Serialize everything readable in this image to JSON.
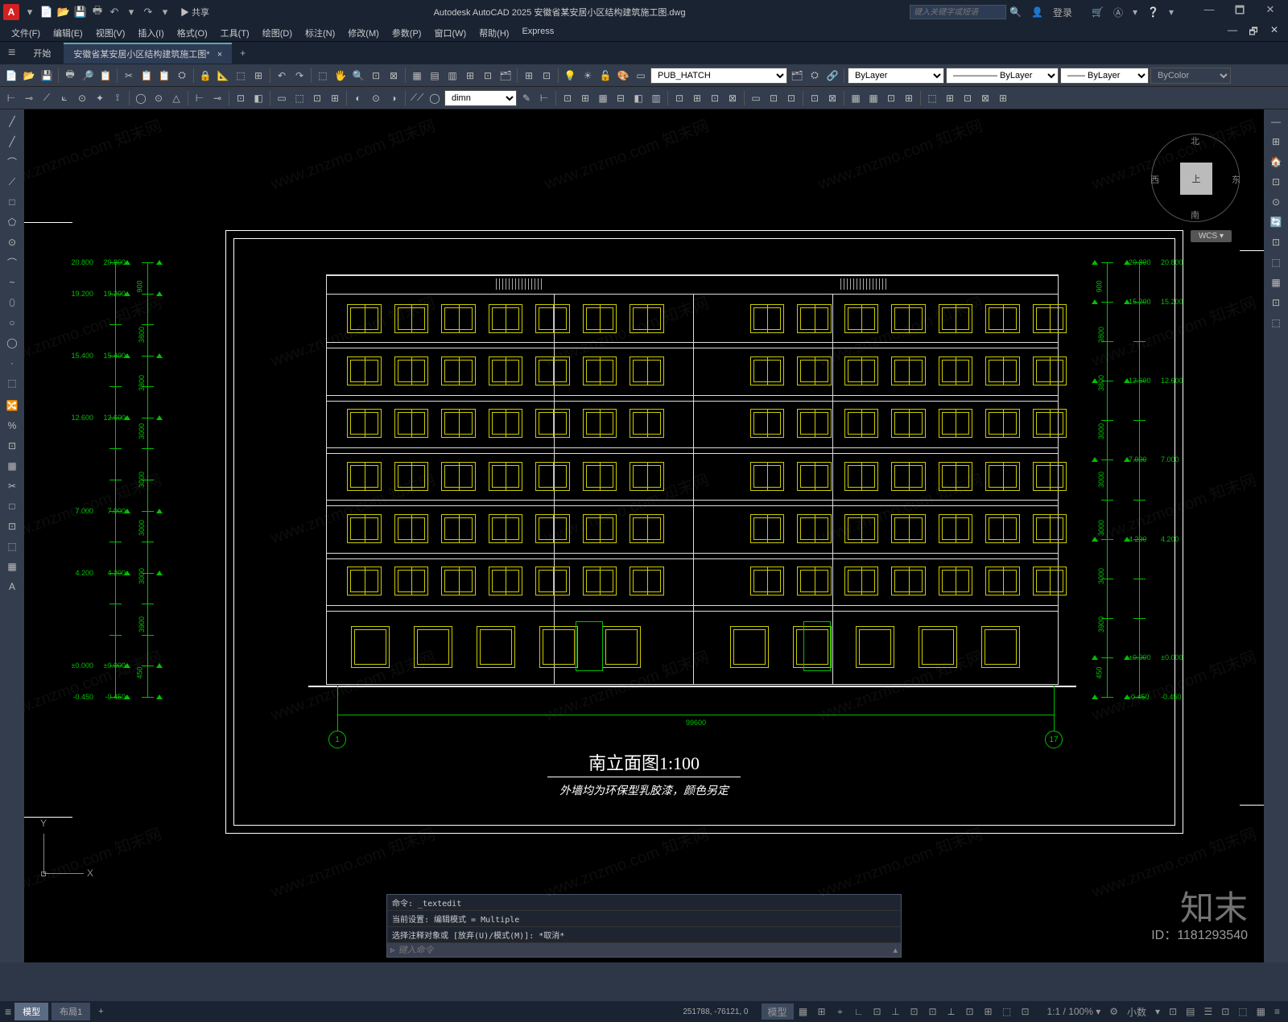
{
  "app": {
    "icon_letter": "A",
    "title": "Autodesk AutoCAD 2025    安徽省某安居小区结构建筑施工图.dwg",
    "share": "▶ 共享",
    "search_placeholder": "键入关键字或短语",
    "login": "登录",
    "qat_icons": [
      "▾",
      "📄",
      "📂",
      "💾",
      "🖶",
      "↶",
      "▾",
      "↷",
      "▾"
    ],
    "title_right_icons": [
      "🔍",
      "👤",
      "",
      "🛒",
      "Ⓐ",
      "▾",
      "❔",
      "▾"
    ]
  },
  "menu": {
    "items": [
      "文件(F)",
      "编辑(E)",
      "视图(V)",
      "插入(I)",
      "格式(O)",
      "工具(T)",
      "绘图(D)",
      "标注(N)",
      "修改(M)",
      "参数(P)",
      "窗口(W)",
      "帮助(H)",
      "Express"
    ],
    "right_icons": [
      "—",
      "🗗",
      "✕"
    ]
  },
  "tabs": {
    "start": "开始",
    "doc": "安徽省某安居小区结构建筑施工图*",
    "plus": "+"
  },
  "toolrow1": {
    "icons_a": [
      "📄",
      "📂",
      "💾",
      "|",
      "🖶",
      "🔎",
      "📋",
      "|",
      "✂",
      "📋",
      "📋",
      "⛭",
      "|",
      "🔒",
      "📐",
      "⬚",
      "⊞",
      "|",
      "↶",
      "↷",
      "|",
      "⬚",
      "🖐",
      "🔍",
      "⊡",
      "⊠",
      "|",
      "▦",
      "▤",
      "▥",
      "⊞",
      "⊡",
      "🗂",
      "|",
      "⊞",
      "⊡"
    ],
    "icons_b": [
      "💡",
      "☀",
      "🔓",
      "🎨",
      "▭"
    ],
    "layer_dd": "PUB_HATCH",
    "icons_c": [
      "🗂",
      "⛭",
      "🔗"
    ],
    "bylayer1": "ByLayer",
    "bylayer2": "————— ByLayer",
    "bylayer3": "—— ByLayer",
    "bycolor": "ByColor"
  },
  "toolrow2": {
    "icons_a": [
      "⊢",
      "⊸",
      "⟋",
      "⟀",
      "⊙",
      "✦",
      "⟟",
      "|",
      "◯",
      "⊙",
      "△",
      "|",
      "⊢",
      "⊸",
      "|",
      "⊡",
      "◧",
      "|",
      "▭",
      "⬚",
      "⊡",
      "⊞",
      "|",
      "◐",
      "⊙",
      "◑",
      "|",
      "⟋⟋",
      "◯"
    ],
    "dim_dd": "dimn",
    "icons_b": [
      "✎",
      "⊢",
      "|",
      "⊡",
      "⊞",
      "▦",
      "⊟",
      "◧",
      "▥",
      "|",
      "⊡",
      "⊞",
      "⊡",
      "⊠",
      "|",
      "▭",
      "⊡",
      "⊡",
      "|",
      "⊡",
      "⊠",
      "|",
      "▦",
      "▦",
      "⊡",
      "⊞",
      "|",
      "⬚",
      "⊞",
      "⊡",
      "⊠",
      "⊞"
    ]
  },
  "left_tools": [
    "╱",
    "╱",
    "⌒",
    "⟋",
    "□",
    "⬠",
    "⊙",
    "⌒",
    "~",
    "⬯",
    "○",
    "◯",
    "·",
    "⬚",
    "|",
    "🔀",
    "%",
    "⊡",
    "▦",
    "✂",
    "□",
    "⊡",
    "⬚",
    "▦",
    "A"
  ],
  "right_tools": [
    "—",
    "⊞",
    "🏠",
    "⊡",
    "⊙",
    "🔄",
    "⊡",
    "⬚",
    "▦",
    "⊡",
    "⬚"
  ],
  "viewcube": {
    "top": "上",
    "n": "北",
    "s": "南",
    "e": "东",
    "w": "西",
    "wcs": "WCS ▾"
  },
  "drawing": {
    "title": "南立面图1:100",
    "subtitle": "外墙均为环保型乳胶漆，颜色另定",
    "axis_left": "1",
    "axis_right": "17",
    "ground_dim": "99600",
    "elev_left": [
      "20.800",
      "19.200",
      "",
      "15.400",
      "",
      "12.600",
      "",
      "",
      "7.000",
      "",
      "4.200",
      "",
      "",
      "±0.000",
      "-0.450"
    ],
    "elev_right_a": [
      "20.800",
      "15.200",
      "",
      "12.600",
      "",
      "7.000",
      "",
      "4.200",
      "",
      "",
      "±0.000",
      "-0.450"
    ],
    "floor_dims_l": [
      "900",
      "3800",
      "3800",
      "3000",
      "3000",
      "3000",
      "3000",
      "3900",
      "450"
    ],
    "floors": 6,
    "windows_per_half": 7,
    "colors": {
      "window": "#cccc00",
      "dim": "#00c000",
      "outline": "#ffffff"
    }
  },
  "cmd": {
    "l1": "命令: _textedit",
    "l2": "当前设置: 编辑模式 = Multiple",
    "l3": "选择注释对象或 [放弃(U)/模式(M)]: *取消*",
    "prompt_icon": "▹",
    "prompt_placeholder": "键入命令"
  },
  "status": {
    "model": "模型",
    "layout1": "布局1",
    "plus": "+",
    "coords": "251788, -76121, 0",
    "buttons": [
      "模型",
      "▦",
      "⊞",
      "⌖",
      "∟",
      "⊡",
      "⊥",
      "⊡",
      "⊡",
      "⟂",
      "⊡",
      "⊞",
      "⬚",
      "⊡"
    ],
    "right": [
      "1:1 / 100% ▾",
      "⚙",
      "小数",
      "▾",
      "⊡",
      "▤",
      "☰",
      "⊡",
      "⬚",
      "▦",
      "≡"
    ]
  },
  "watermark": {
    "text": "知末",
    "id": "ID：1181293540",
    "repeat": "www.znzmo.com 知末网"
  }
}
